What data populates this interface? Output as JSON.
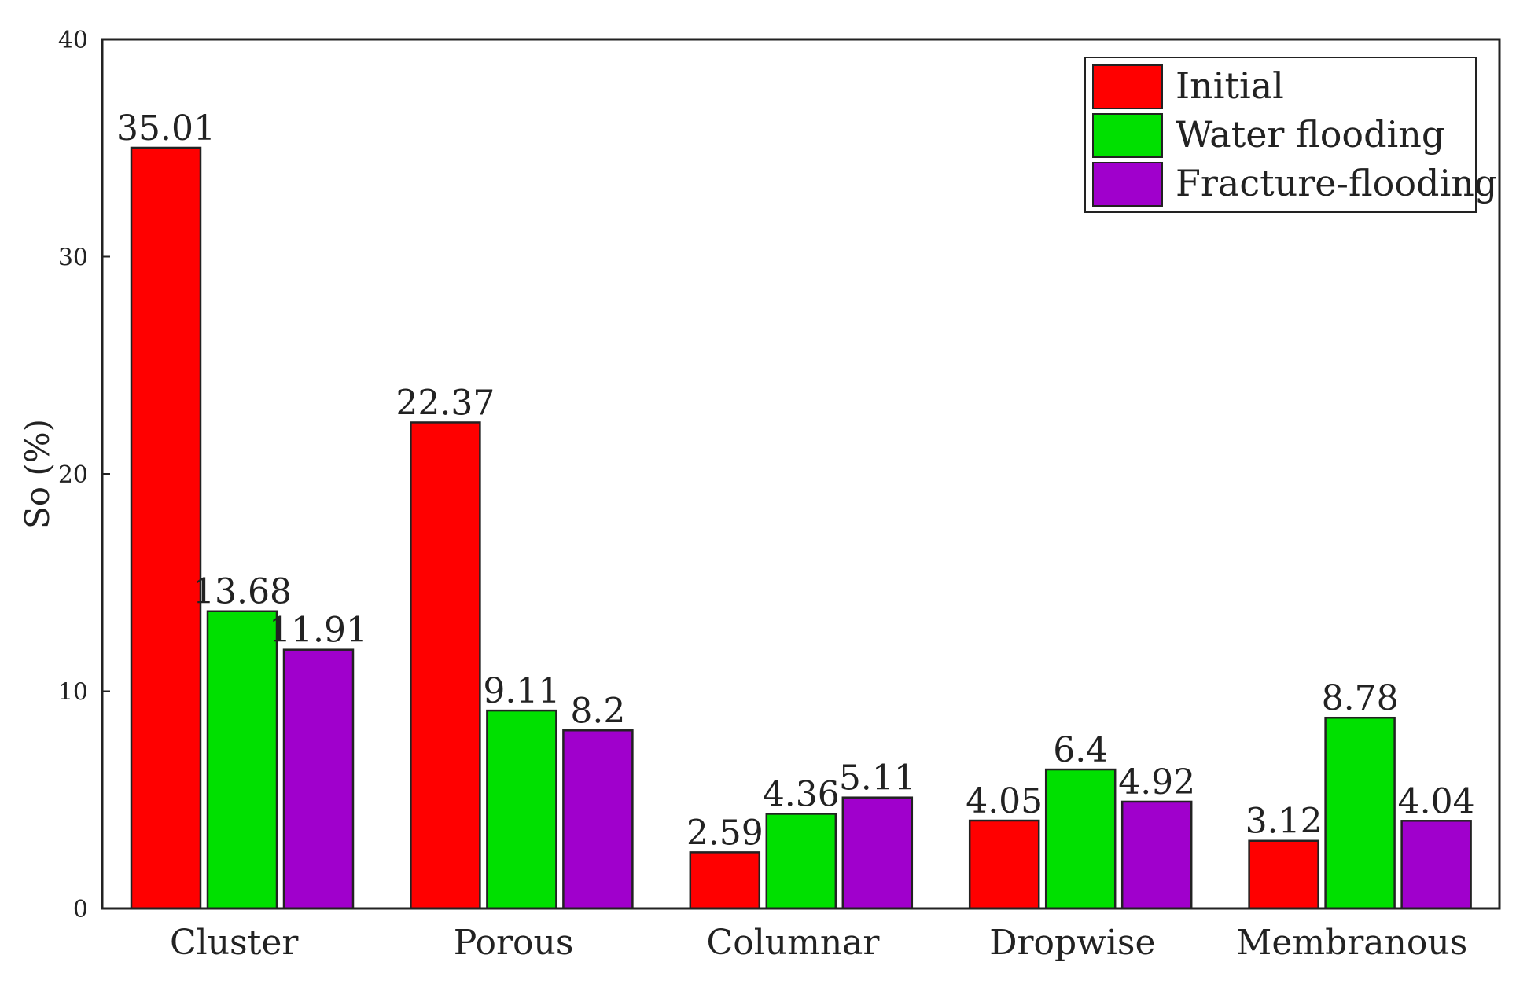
{
  "chart_data": {
    "type": "bar",
    "title": "",
    "xlabel": "",
    "ylabel": "So (%)",
    "ylim": [
      0,
      40
    ],
    "yticks": [
      0,
      10,
      20,
      30,
      40
    ],
    "grid": false,
    "legend_position": "top-right",
    "categories": [
      "Cluster",
      "Porous",
      "Columnar",
      "Dropwise",
      "Membranous"
    ],
    "series": [
      {
        "name": "Initial",
        "color": "#ff0000",
        "values": [
          35.01,
          22.37,
          2.59,
          4.05,
          3.12
        ],
        "labels": [
          "35.01",
          "22.37",
          "2.59",
          "4.05",
          "3.12"
        ]
      },
      {
        "name": "Water flooding",
        "color": "#00e000",
        "values": [
          13.68,
          9.11,
          4.36,
          6.4,
          8.78
        ],
        "labels": [
          "13.68",
          "9.11",
          "4.36",
          "6.4",
          "8.78"
        ]
      },
      {
        "name": "Fracture-flooding",
        "color": "#a000cc",
        "values": [
          11.91,
          8.2,
          5.11,
          4.92,
          4.04
        ],
        "labels": [
          "11.91",
          "8.2",
          "5.11",
          "4.92",
          "4.04"
        ]
      }
    ]
  }
}
